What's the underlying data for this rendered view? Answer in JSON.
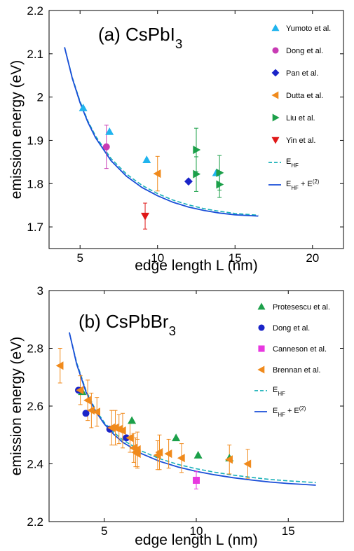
{
  "chart_data": [
    {
      "type": "scatter",
      "title": "(a) CsPbI",
      "title_sub": "3",
      "xlabel": "edge length L (nm)",
      "ylabel": "emission energy (eV)",
      "xlim": [
        3,
        22
      ],
      "ylim": [
        1.65,
        2.2
      ],
      "xticks": [
        5,
        10,
        15,
        20
      ],
      "yticks": [
        1.7,
        1.8,
        1.9,
        2.0,
        2.1,
        2.2
      ],
      "ytick_labels": [
        "1.7",
        "1.8",
        "1.9",
        "2",
        "2.1",
        "2.2"
      ],
      "legend_position": "right",
      "grid": false,
      "series": [
        {
          "name": "Yumoto et al.",
          "marker": "triangle-up",
          "color": "#20b4ee",
          "x": [
            5.2,
            6.9,
            9.3,
            13.8
          ],
          "y": [
            1.975,
            1.92,
            1.855,
            1.825
          ],
          "err": [
            0,
            0,
            0,
            0
          ]
        },
        {
          "name": "Dong et al.",
          "marker": "circle",
          "color": "#c83bb4",
          "x": [
            6.7
          ],
          "y": [
            1.885
          ],
          "err": [
            0.05
          ]
        },
        {
          "name": "Pan et al.",
          "marker": "diamond",
          "color": "#1a24c8",
          "x": [
            12.0
          ],
          "y": [
            1.805
          ],
          "err": [
            0
          ]
        },
        {
          "name": "Dutta et al.",
          "marker": "triangle-left",
          "color": "#f08a1c",
          "x": [
            10.0
          ],
          "y": [
            1.823
          ],
          "err": [
            0.04
          ]
        },
        {
          "name": "Liu et al.",
          "marker": "triangle-right",
          "color": "#1ca04a",
          "x": [
            12.5,
            12.5,
            14.0,
            14.0
          ],
          "y": [
            1.878,
            1.822,
            1.825,
            1.798
          ],
          "err": [
            0.05,
            0.04,
            0.04,
            0.03
          ]
        },
        {
          "name": "Yin et al.",
          "marker": "triangle-down",
          "color": "#e01818",
          "x": [
            9.2
          ],
          "y": [
            1.725
          ],
          "err": [
            0.03
          ]
        }
      ],
      "curves": [
        {
          "name": "E",
          "name_sub": "HF",
          "style": "dashed",
          "color": "#18b0b8",
          "x": [
            4,
            4.5,
            5,
            5.5,
            6,
            7,
            8,
            9,
            10,
            11,
            12,
            13,
            14,
            15,
            16.5
          ],
          "y": [
            2.115,
            2.045,
            1.99,
            1.945,
            1.91,
            1.858,
            1.822,
            1.796,
            1.777,
            1.762,
            1.751,
            1.742,
            1.736,
            1.731,
            1.727
          ]
        },
        {
          "name": "E",
          "name_sub": "HF",
          "name_extra": " + E",
          "name_sup": "(2)",
          "style": "solid",
          "color": "#1a4ed8",
          "x": [
            4,
            4.5,
            5,
            5.5,
            6,
            7,
            8,
            9,
            10,
            11,
            12,
            13,
            14,
            15,
            16.5
          ],
          "y": [
            2.115,
            2.043,
            1.987,
            1.942,
            1.906,
            1.853,
            1.817,
            1.791,
            1.772,
            1.757,
            1.746,
            1.738,
            1.732,
            1.728,
            1.725
          ]
        }
      ]
    },
    {
      "type": "scatter",
      "title": "(b) CsPbBr",
      "title_sub": "3",
      "xlabel": "edge length L (nm)",
      "ylabel": "emission energy (eV)",
      "xlim": [
        2,
        18
      ],
      "ylim": [
        2.2,
        3.0
      ],
      "xticks": [
        5,
        10,
        15
      ],
      "yticks": [
        2.2,
        2.4,
        2.6,
        2.8,
        3.0
      ],
      "ytick_labels": [
        "2.2",
        "2.4",
        "2.6",
        "2.8",
        "3"
      ],
      "legend_position": "right",
      "grid": false,
      "series": [
        {
          "name": "Protesescu et al.",
          "marker": "triangle-up",
          "color": "#1ca04a",
          "x": [
            3.8,
            6.5,
            8.9,
            10.1,
            11.8
          ],
          "y": [
            2.65,
            2.55,
            2.49,
            2.43,
            2.42
          ],
          "err": [
            0,
            0,
            0,
            0,
            0
          ]
        },
        {
          "name": "Dong et al.",
          "marker": "circle",
          "color": "#1a24c8",
          "x": [
            3.6,
            4.0,
            5.3,
            6.2
          ],
          "y": [
            2.655,
            2.575,
            2.52,
            2.49
          ],
          "err": [
            0,
            0,
            0,
            0
          ]
        },
        {
          "name": "Canneson et al.",
          "marker": "square",
          "color": "#e838e0",
          "x": [
            10.0
          ],
          "y": [
            2.343
          ],
          "err": [
            0.03
          ]
        },
        {
          "name": "Brennan et al.",
          "marker": "triangle-left",
          "color": "#f08a1c",
          "x": [
            2.6,
            3.7,
            4.1,
            4.3,
            4.6,
            5.4,
            5.6,
            5.8,
            6.0,
            6.4,
            6.6,
            6.7,
            6.8,
            6.8,
            7.9,
            8.0,
            8.5,
            9.2,
            11.8,
            12.8
          ],
          "y": [
            2.74,
            2.655,
            2.62,
            2.585,
            2.58,
            2.525,
            2.525,
            2.52,
            2.515,
            2.49,
            2.455,
            2.44,
            2.45,
            2.435,
            2.43,
            2.44,
            2.435,
            2.42,
            2.415,
            2.4
          ],
          "err": [
            0.06,
            0.05,
            0.07,
            0.06,
            0.05,
            0.06,
            0.06,
            0.05,
            0.06,
            0.05,
            0.05,
            0.05,
            0.06,
            0.05,
            0.05,
            0.06,
            0.05,
            0.05,
            0.05,
            0.05
          ]
        }
      ],
      "curves": [
        {
          "name": "E",
          "name_sub": "HF",
          "style": "dashed",
          "color": "#18b0b8",
          "x": [
            3.1,
            3.5,
            4,
            4.5,
            5,
            5.5,
            6,
            7,
            8,
            9,
            10,
            11,
            12,
            13,
            14,
            15,
            16.5
          ],
          "y": [
            2.855,
            2.75,
            2.655,
            2.59,
            2.543,
            2.51,
            2.483,
            2.445,
            2.418,
            2.398,
            2.383,
            2.371,
            2.361,
            2.353,
            2.346,
            2.341,
            2.335
          ]
        },
        {
          "name": "E",
          "name_sub": "HF",
          "name_extra": " + E",
          "name_sup": "(2)",
          "style": "solid",
          "color": "#1a4ed8",
          "x": [
            3.1,
            3.5,
            4,
            4.5,
            5,
            5.5,
            6,
            7,
            8,
            9,
            10,
            11,
            12,
            13,
            14,
            15,
            16.5
          ],
          "y": [
            2.855,
            2.745,
            2.65,
            2.585,
            2.538,
            2.503,
            2.475,
            2.436,
            2.409,
            2.389,
            2.374,
            2.362,
            2.352,
            2.344,
            2.337,
            2.332,
            2.326
          ]
        }
      ]
    }
  ]
}
